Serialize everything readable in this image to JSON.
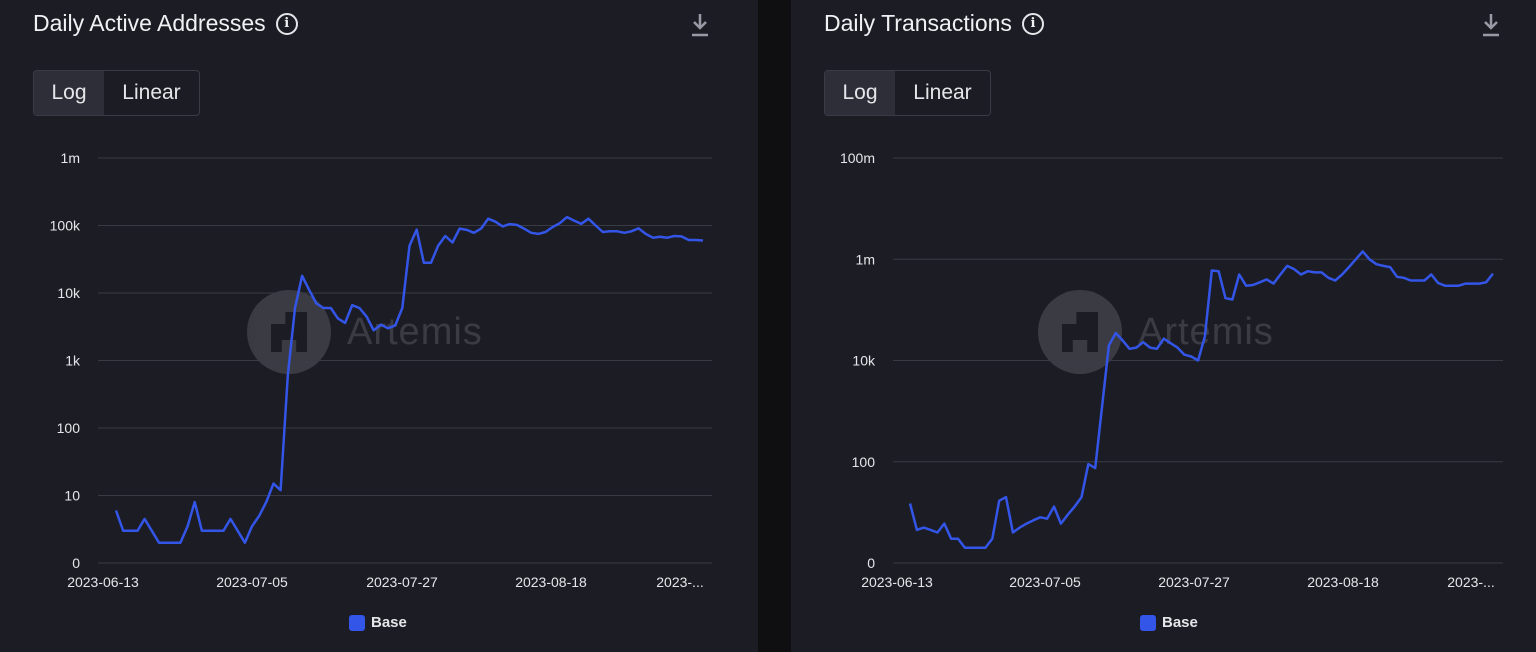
{
  "panels": [
    {
      "title": "Daily Active Addresses",
      "toggle": {
        "log_label": "Log",
        "linear_label": "Linear",
        "selected": "Log"
      },
      "icons": {
        "info": "info-icon",
        "download": "download-icon"
      },
      "watermark": "Artemis",
      "legend": "Base"
    },
    {
      "title": "Daily Transactions",
      "toggle": {
        "log_label": "Log",
        "linear_label": "Linear",
        "selected": "Log"
      },
      "icons": {
        "info": "info-icon",
        "download": "download-icon"
      },
      "watermark": "Artemis",
      "legend": "Base"
    }
  ],
  "chart_data": [
    {
      "type": "line",
      "title": "Daily Active Addresses",
      "yscale": "log",
      "ylim": [
        1,
        1000000
      ],
      "y_ticks": [
        {
          "value": 1,
          "label": "0"
        },
        {
          "value": 10,
          "label": "10"
        },
        {
          "value": 100,
          "label": "100"
        },
        {
          "value": 1000,
          "label": "1k"
        },
        {
          "value": 10000,
          "label": "10k"
        },
        {
          "value": 100000,
          "label": "100k"
        },
        {
          "value": 1000000,
          "label": "1m"
        }
      ],
      "x_ticks": [
        "2023-06-13",
        "2023-07-05",
        "2023-07-27",
        "2023-08-18",
        "2023-..."
      ],
      "grid": true,
      "legend_position": "bottom-center",
      "color": "#3355e8",
      "series": [
        {
          "name": "Base",
          "values": [
            6,
            3,
            3,
            3,
            4.5,
            3,
            2,
            2,
            2,
            2,
            3.5,
            8,
            3,
            3,
            3,
            3,
            4.5,
            3,
            2,
            3.5,
            5,
            8,
            15,
            12,
            600,
            6000,
            18000,
            11000,
            7000,
            6000,
            6000,
            4200,
            3600,
            6600,
            6000,
            4500,
            2800,
            3400,
            3000,
            3300,
            6000,
            50000,
            87000,
            28000,
            28000,
            50000,
            70000,
            56000,
            90000,
            86000,
            78000,
            90000,
            126000,
            114000,
            97000,
            105000,
            102000,
            90000,
            78000,
            75000,
            80000,
            95000,
            108000,
            133000,
            118000,
            106000,
            126000,
            100000,
            80000,
            82000,
            82000,
            78000,
            82000,
            91000,
            75000,
            66000,
            68000,
            66000,
            70000,
            69000,
            61000,
            61000,
            60000
          ]
        }
      ]
    },
    {
      "type": "line",
      "title": "Daily Transactions",
      "yscale": "log",
      "ylim": [
        1,
        100000000
      ],
      "y_ticks": [
        {
          "value": 1,
          "label": "0"
        },
        {
          "value": 100,
          "label": "100"
        },
        {
          "value": 10000,
          "label": "10k"
        },
        {
          "value": 1000000,
          "label": "1m"
        },
        {
          "value": 100000000,
          "label": "100m"
        }
      ],
      "x_ticks": [
        "2023-06-13",
        "2023-07-05",
        "2023-07-27",
        "2023-08-18",
        "2023-..."
      ],
      "grid": true,
      "legend_position": "bottom-center",
      "color": "#3355e8",
      "series": [
        {
          "name": "Base",
          "values": [
            15,
            4.5,
            5,
            4.5,
            4,
            6,
            3,
            3,
            2,
            2,
            2,
            2,
            3,
            17,
            20,
            4,
            5,
            6,
            7,
            8,
            7.5,
            13,
            6,
            9,
            13,
            20,
            90,
            75,
            1200,
            20000,
            35000,
            25000,
            17000,
            18000,
            23000,
            18000,
            17000,
            27000,
            22000,
            18000,
            13000,
            12000,
            10000,
            30000,
            600000,
            580000,
            170000,
            160000,
            500000,
            300000,
            310000,
            350000,
            400000,
            330000,
            500000,
            740000,
            640000,
            500000,
            580000,
            550000,
            550000,
            430000,
            380000,
            500000,
            700000,
            1000000,
            1430000,
            1000000,
            800000,
            740000,
            700000,
            450000,
            430000,
            380000,
            380000,
            380000,
            500000,
            340000,
            300000,
            300000,
            300000,
            330000,
            330000,
            330000,
            350000,
            520000
          ]
        }
      ]
    }
  ]
}
